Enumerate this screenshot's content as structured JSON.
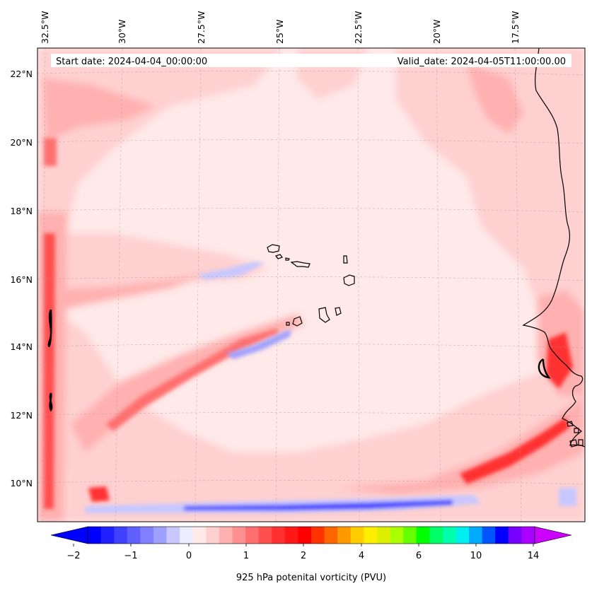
{
  "map": {
    "start_label": "Start date: 2024-04-04_00:00:00",
    "valid_label": "Valid_date: 2024-04-05T11:00:00.00",
    "lon_labels": [
      "32.5°W",
      "30°W",
      "27.5°W",
      "25°W",
      "22.5°W",
      "20°W",
      "17.5°W"
    ],
    "lat_labels": [
      "22°N",
      "20°N",
      "18°N",
      "16°N",
      "14°N",
      "12°N",
      "10°N"
    ],
    "gridlines": true
  },
  "colorbar": {
    "label": "925 hPa potenital vorticity (PVU)",
    "tick_labels": [
      "−2",
      "−1",
      "0",
      "1",
      "2",
      "4",
      "6",
      "10",
      "14"
    ],
    "levels": [
      -2,
      -1.75,
      -1.5,
      -1.25,
      -1,
      -0.75,
      -0.5,
      -0.25,
      0,
      0.25,
      0.5,
      0.75,
      1,
      1.25,
      1.5,
      1.75,
      2,
      2.5,
      3,
      3.5,
      4,
      4.5,
      5,
      5.5,
      6,
      7,
      8,
      9,
      10,
      11,
      12,
      13,
      14,
      15
    ],
    "colors": [
      "#0000ff",
      "#2020ff",
      "#4040ff",
      "#6060ff",
      "#8080ff",
      "#a0a0ff",
      "#c8c8ff",
      "#ececff",
      "#ffe9e9",
      "#ffd0d0",
      "#ffb0b0",
      "#ff9090",
      "#ff6f6f",
      "#ff5050",
      "#ff3030",
      "#ff1818",
      "#ff0000",
      "#ff3300",
      "#ff6600",
      "#ff9900",
      "#ffcc00",
      "#ffee00",
      "#ddee00",
      "#aaff00",
      "#66ff00",
      "#00ff00",
      "#00ff66",
      "#00ffaa",
      "#00eeee",
      "#00aaff",
      "#0055ff",
      "#0000ff",
      "#7700ff",
      "#aa00ff"
    ],
    "under_color": "#0000ff",
    "over_color": "#cc00ff",
    "extend": "both"
  }
}
